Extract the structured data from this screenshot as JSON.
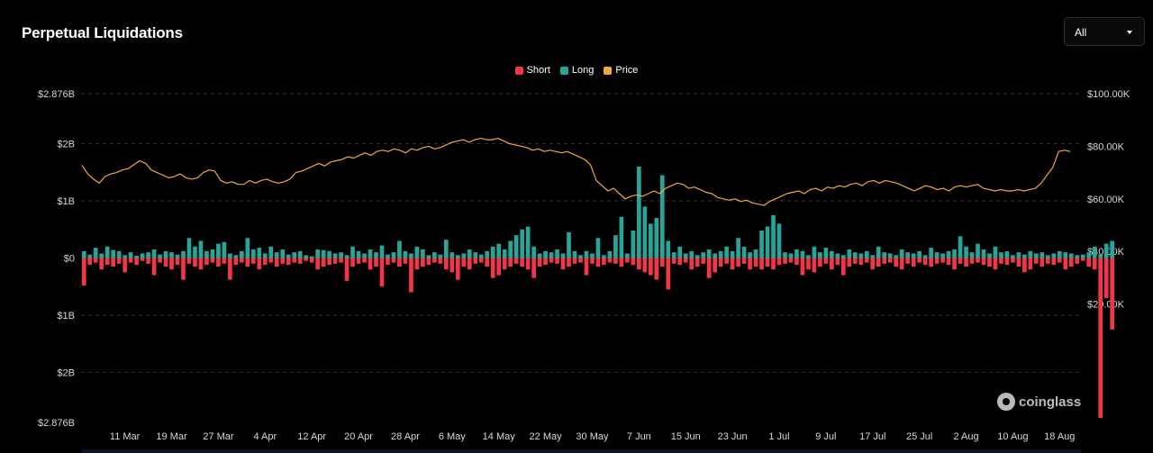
{
  "header": {
    "title": "Perpetual Liquidations"
  },
  "range_select": {
    "value": "All"
  },
  "legend": [
    {
      "label": "Short",
      "color": "#f23645"
    },
    {
      "label": "Long",
      "color": "#26a69a"
    },
    {
      "label": "Price",
      "color": "#f0a93a"
    }
  ],
  "watermark": {
    "text": "coinglass"
  },
  "colors": {
    "short": "#f23645",
    "long": "#26a69a",
    "price": "#f0a93a",
    "grid": "#333333"
  },
  "chart_data": {
    "type": "bar",
    "title": "Perpetual Liquidations",
    "left_axis": {
      "ticks": [
        "$2.876B",
        "$2B",
        "$1B",
        "$0",
        "$1B",
        "$2B",
        "$2.876B"
      ],
      "tick_values": [
        2.876,
        2,
        1,
        0,
        -1,
        -2,
        -2.876
      ],
      "range": [
        -2.876,
        2.876
      ],
      "unit": "B USD (long up, short down)"
    },
    "right_axis": {
      "ticks": [
        "$100.00K",
        "$80.00K",
        "$60.00K",
        "$40.00K",
        "$20.00K"
      ],
      "tick_values": [
        100000,
        80000,
        60000,
        40000,
        20000
      ],
      "range": [
        -25000,
        100000
      ]
    },
    "x_ticks": [
      "11 Mar",
      "19 Mar",
      "27 Mar",
      "4 Apr",
      "12 Apr",
      "20 Apr",
      "28 Apr",
      "6 May",
      "14 May",
      "22 May",
      "30 May",
      "7 Jun",
      "15 Jun",
      "23 Jun",
      "1 Jul",
      "9 Jul",
      "17 Jul",
      "25 Jul",
      "2 Aug",
      "10 Aug",
      "18 Aug"
    ],
    "x_tick_day_index": [
      7,
      15,
      23,
      31,
      39,
      47,
      55,
      63,
      71,
      79,
      87,
      95,
      103,
      111,
      119,
      127,
      135,
      143,
      151,
      159,
      167
    ],
    "day_count": 171,
    "grid": true,
    "legend_position": "top-center",
    "series": [
      {
        "name": "Long",
        "values": [
          0.12,
          0.06,
          0.18,
          0.08,
          0.2,
          0.14,
          0.12,
          0.05,
          0.1,
          0.04,
          0.08,
          0.1,
          0.15,
          0.06,
          0.12,
          0.1,
          0.06,
          0.12,
          0.35,
          0.2,
          0.3,
          0.12,
          0.15,
          0.25,
          0.28,
          0.08,
          0.05,
          0.12,
          0.35,
          0.15,
          0.18,
          0.08,
          0.2,
          0.1,
          0.15,
          0.06,
          0.1,
          0.12,
          0.05,
          0.03,
          0.15,
          0.14,
          0.12,
          0.08,
          0.1,
          0.05,
          0.2,
          0.12,
          0.08,
          0.15,
          0.1,
          0.22,
          0.06,
          0.1,
          0.3,
          0.12,
          0.08,
          0.2,
          0.15,
          0.05,
          0.1,
          0.06,
          0.32,
          0.1,
          0.05,
          0.08,
          0.15,
          0.1,
          0.06,
          0.12,
          0.2,
          0.25,
          0.15,
          0.3,
          0.4,
          0.5,
          0.55,
          0.2,
          0.08,
          0.12,
          0.1,
          0.15,
          0.08,
          0.45,
          0.12,
          0.05,
          0.12,
          0.08,
          0.35,
          0.05,
          0.12,
          0.4,
          0.72,
          0.08,
          0.48,
          1.6,
          0.9,
          0.6,
          0.7,
          1.45,
          0.3,
          0.1,
          0.2,
          0.08,
          0.12,
          0.05,
          0.1,
          0.15,
          0.08,
          0.12,
          0.2,
          0.12,
          0.35,
          0.2,
          0.1,
          0.15,
          0.48,
          0.55,
          0.75,
          0.6,
          0.1,
          0.08,
          0.15,
          0.12,
          0.05,
          0.2,
          0.1,
          0.18,
          0.12,
          0.08,
          0.05,
          0.15,
          0.1,
          0.08,
          0.12,
          0.05,
          0.2,
          0.1,
          0.08,
          0.05,
          0.15,
          0.1,
          0.08,
          0.12,
          0.05,
          0.18,
          0.1,
          0.08,
          0.12,
          0.15,
          0.38,
          0.2,
          0.1,
          0.25,
          0.15,
          0.08,
          0.2,
          0.1,
          0.12,
          0.05,
          0.1,
          0.06,
          0.12,
          0.08,
          0.1,
          0.05,
          0.08,
          0.12,
          0.1,
          0.08,
          0.05,
          0.06,
          0.1,
          0.2,
          0.06,
          0.25,
          0.3
        ],
        "color": "#26a69a"
      },
      {
        "name": "Short",
        "values": [
          -0.48,
          -0.12,
          -0.08,
          -0.2,
          -0.12,
          -0.15,
          -0.1,
          -0.25,
          -0.08,
          -0.12,
          -0.05,
          -0.1,
          -0.3,
          -0.08,
          -0.15,
          -0.2,
          -0.12,
          -0.38,
          -0.1,
          -0.15,
          -0.2,
          -0.12,
          -0.08,
          -0.15,
          -0.1,
          -0.38,
          -0.12,
          -0.08,
          -0.15,
          -0.1,
          -0.2,
          -0.12,
          -0.08,
          -0.15,
          -0.1,
          -0.12,
          -0.08,
          -0.1,
          -0.05,
          -0.08,
          -0.2,
          -0.15,
          -0.12,
          -0.1,
          -0.08,
          -0.4,
          -0.15,
          -0.1,
          -0.08,
          -0.2,
          -0.15,
          -0.5,
          -0.12,
          -0.08,
          -0.15,
          -0.1,
          -0.6,
          -0.2,
          -0.15,
          -0.12,
          -0.08,
          -0.1,
          -0.2,
          -0.25,
          -0.38,
          -0.15,
          -0.2,
          -0.1,
          -0.08,
          -0.15,
          -0.35,
          -0.3,
          -0.2,
          -0.15,
          -0.1,
          -0.15,
          -0.2,
          -0.35,
          -0.15,
          -0.12,
          -0.08,
          -0.1,
          -0.2,
          -0.15,
          -0.1,
          -0.08,
          -0.3,
          -0.1,
          -0.15,
          -0.12,
          -0.08,
          -0.1,
          -0.15,
          -0.08,
          -0.12,
          -0.2,
          -0.25,
          -0.3,
          -0.38,
          -0.15,
          -0.55,
          -0.1,
          -0.12,
          -0.08,
          -0.2,
          -0.15,
          -0.1,
          -0.35,
          -0.25,
          -0.15,
          -0.1,
          -0.2,
          -0.15,
          -0.1,
          -0.2,
          -0.15,
          -0.2,
          -0.15,
          -0.2,
          -0.12,
          -0.1,
          -0.08,
          -0.12,
          -0.3,
          -0.2,
          -0.25,
          -0.15,
          -0.1,
          -0.2,
          -0.12,
          -0.3,
          -0.15,
          -0.1,
          -0.12,
          -0.08,
          -0.2,
          -0.15,
          -0.1,
          -0.08,
          -0.15,
          -0.2,
          -0.1,
          -0.15,
          -0.08,
          -0.12,
          -0.15,
          -0.1,
          -0.08,
          -0.12,
          -0.2,
          -0.1,
          -0.15,
          -0.1,
          -0.08,
          -0.12,
          -0.15,
          -0.2,
          -0.1,
          -0.12,
          -0.08,
          -0.15,
          -0.25,
          -0.2,
          -0.1,
          -0.15,
          -0.1,
          -0.12,
          -0.08,
          -0.2,
          -0.15,
          -0.1,
          -0.05,
          -0.15,
          -0.2,
          -2.8,
          -0.7,
          -1.25
        ],
        "color": "#f23645"
      },
      {
        "name": "Price",
        "axis": "right",
        "color": "#f0a93a",
        "values": [
          72800,
          69500,
          67500,
          66000,
          68500,
          69500,
          70000,
          71000,
          71500,
          73000,
          74500,
          73500,
          71000,
          70000,
          69000,
          68000,
          68500,
          69500,
          68000,
          67500,
          68000,
          70000,
          71000,
          70500,
          67000,
          66000,
          66500,
          65500,
          65500,
          67000,
          66000,
          67000,
          67500,
          66500,
          66000,
          66500,
          67500,
          70000,
          70500,
          71500,
          72500,
          73500,
          72500,
          74000,
          74500,
          75000,
          76000,
          75500,
          76500,
          77500,
          76500,
          78000,
          78500,
          78000,
          79000,
          78500,
          77500,
          79000,
          78500,
          79500,
          80000,
          79000,
          79500,
          80500,
          81500,
          82000,
          82500,
          81500,
          82500,
          83000,
          82500,
          82500,
          83000,
          82000,
          81000,
          80500,
          80000,
          79500,
          78500,
          79000,
          78000,
          78500,
          78000,
          77500,
          78000,
          77000,
          76000,
          75000,
          73000,
          67000,
          65000,
          63000,
          64000,
          62000,
          60000,
          61000,
          61500,
          61000,
          62000,
          63000,
          62000,
          64000,
          65000,
          66000,
          65500,
          64000,
          64500,
          63500,
          62500,
          62000,
          60500,
          60000,
          59500,
          60000,
          59000,
          59500,
          58500,
          58000,
          57500,
          59000,
          60000,
          61000,
          62000,
          62500,
          63000,
          62000,
          63500,
          64000,
          63000,
          64500,
          64000,
          65000,
          64500,
          65500,
          66000,
          65000,
          66500,
          67000,
          66000,
          67000,
          66500,
          66000,
          65000,
          64000,
          63000,
          64000,
          65000,
          64500,
          63500,
          64000,
          63000,
          64500,
          65000,
          64500,
          65000,
          65500,
          64000,
          63500,
          63000,
          63500,
          63000,
          63000,
          63500,
          63000,
          63500,
          64000,
          66000,
          69000,
          72000,
          78000,
          78500,
          78000
        ]
      }
    ]
  }
}
